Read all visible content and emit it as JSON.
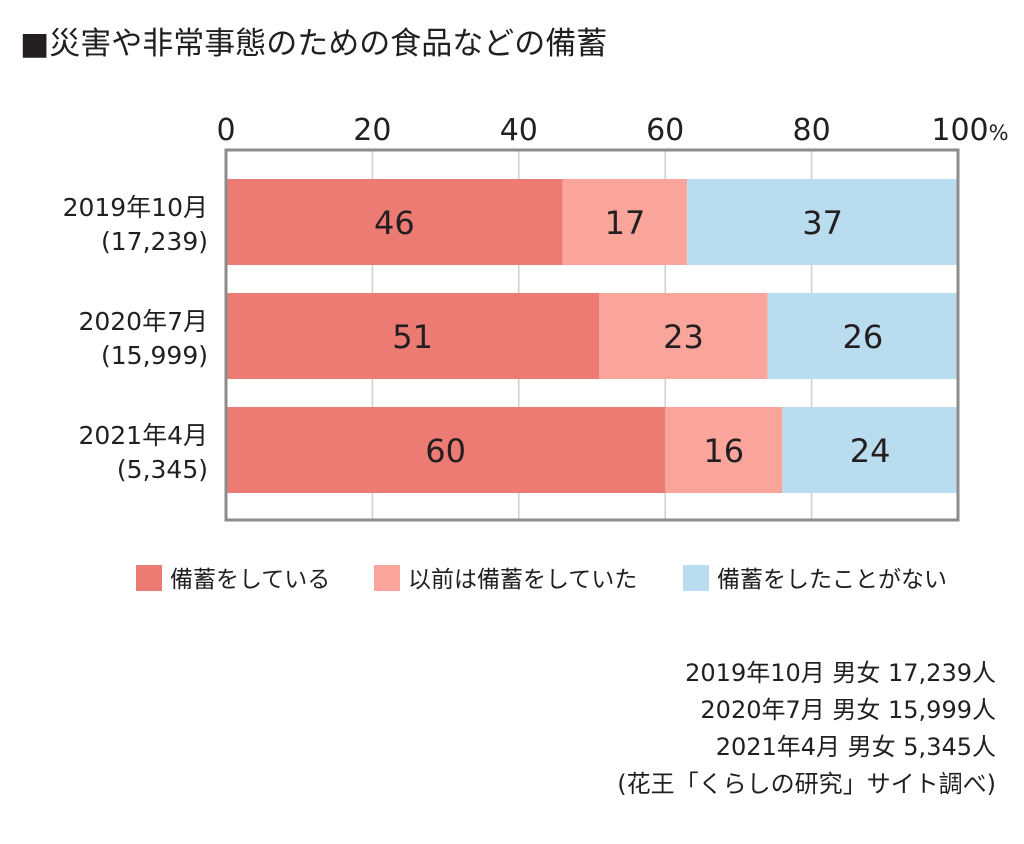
{
  "title": "■災害や非常事態のための食品などの備蓄",
  "chart_data": {
    "type": "bar",
    "orientation": "horizontal",
    "stacked": true,
    "categories": [
      [
        "2019年10月",
        "(17,239)"
      ],
      [
        "2020年7月",
        "(15,999)"
      ],
      [
        "2021年4月",
        "(5,345)"
      ]
    ],
    "series": [
      {
        "name": "備蓄をしている",
        "values": [
          46,
          51,
          60
        ],
        "color": "#ec7b74"
      },
      {
        "name": "以前は備蓄をしていた",
        "values": [
          17,
          23,
          16
        ],
        "color": "#f9a59c"
      },
      {
        "name": "備蓄をしたことがない",
        "values": [
          37,
          26,
          24
        ],
        "color": "#badcef"
      }
    ],
    "x_ticks": [
      "0",
      "20",
      "40",
      "60",
      "80",
      "100"
    ],
    "x_unit": "%",
    "xlim": [
      0,
      100
    ],
    "grid": true,
    "legend_position": "bottom"
  },
  "footnote": [
    "2019年10月 男女 17,239人",
    "2020年7月 男女 15,999人",
    "2021年4月 男女 5,345人",
    "(花王「くらしの研究」サイト調べ)"
  ]
}
